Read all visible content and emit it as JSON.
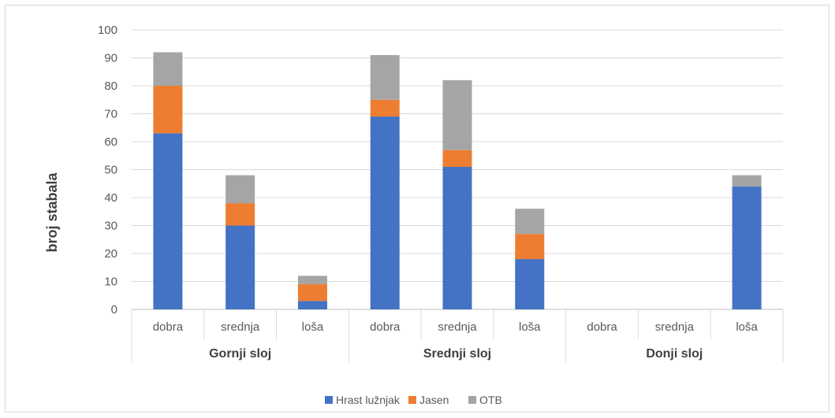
{
  "chart_data": {
    "type": "bar",
    "stacked": true,
    "ylabel": "broj stabala",
    "ylim": [
      0,
      100
    ],
    "yticks": [
      0,
      10,
      20,
      30,
      40,
      50,
      60,
      70,
      80,
      90,
      100
    ],
    "grid": true,
    "legend_position": "bottom",
    "groups": [
      {
        "label": "Gornji sloj",
        "categories": [
          "dobra",
          "srednja",
          "loša"
        ]
      },
      {
        "label": "Srednji sloj",
        "categories": [
          "dobra",
          "srednja",
          "loša"
        ]
      },
      {
        "label": "Donji sloj",
        "categories": [
          "dobra",
          "srednja",
          "loša"
        ]
      }
    ],
    "categories": [
      "dobra",
      "srednja",
      "loša",
      "dobra",
      "srednja",
      "loša",
      "dobra",
      "srednja",
      "loša"
    ],
    "series": [
      {
        "name": "Hrast lužnjak",
        "color": "#4472c4",
        "values": [
          63,
          30,
          3,
          69,
          51,
          18,
          0,
          0,
          44
        ]
      },
      {
        "name": "Jasen",
        "color": "#ed7d31",
        "values": [
          17,
          8,
          6,
          6,
          6,
          9,
          0,
          0,
          0
        ]
      },
      {
        "name": "OTB",
        "color": "#a5a5a5",
        "values": [
          12,
          10,
          3,
          16,
          25,
          9,
          0,
          0,
          4
        ]
      }
    ]
  }
}
